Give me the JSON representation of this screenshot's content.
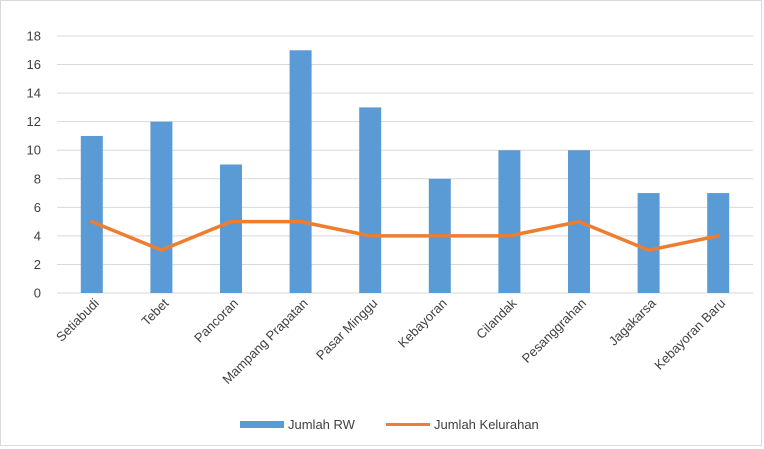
{
  "chart_data": {
    "type": "bar",
    "categories": [
      "Setiabudi",
      "Tebet",
      "Pancoran",
      "Mampang Prapatan",
      "Pasar Minggu",
      "Kebayoran",
      "Cilandak",
      "Pesanggrahan",
      "Jagakarsa",
      "Kebayoran Baru"
    ],
    "series": [
      {
        "name": "Jumlah RW",
        "kind": "bar",
        "color": "#5b9bd5",
        "values": [
          11,
          12,
          9,
          17,
          13,
          8,
          10,
          10,
          7,
          7
        ]
      },
      {
        "name": "Jumlah Kelurahan",
        "kind": "line",
        "color": "#ed7d31",
        "values": [
          5,
          3,
          5,
          5,
          4,
          4,
          4,
          5,
          3,
          4
        ]
      }
    ],
    "yticks": [
      0,
      2,
      4,
      6,
      8,
      10,
      12,
      14,
      16,
      18
    ],
    "ylim": [
      0,
      18
    ],
    "grid": true,
    "legend_position": "bottom",
    "title": "",
    "xlabel": "",
    "ylabel": ""
  }
}
